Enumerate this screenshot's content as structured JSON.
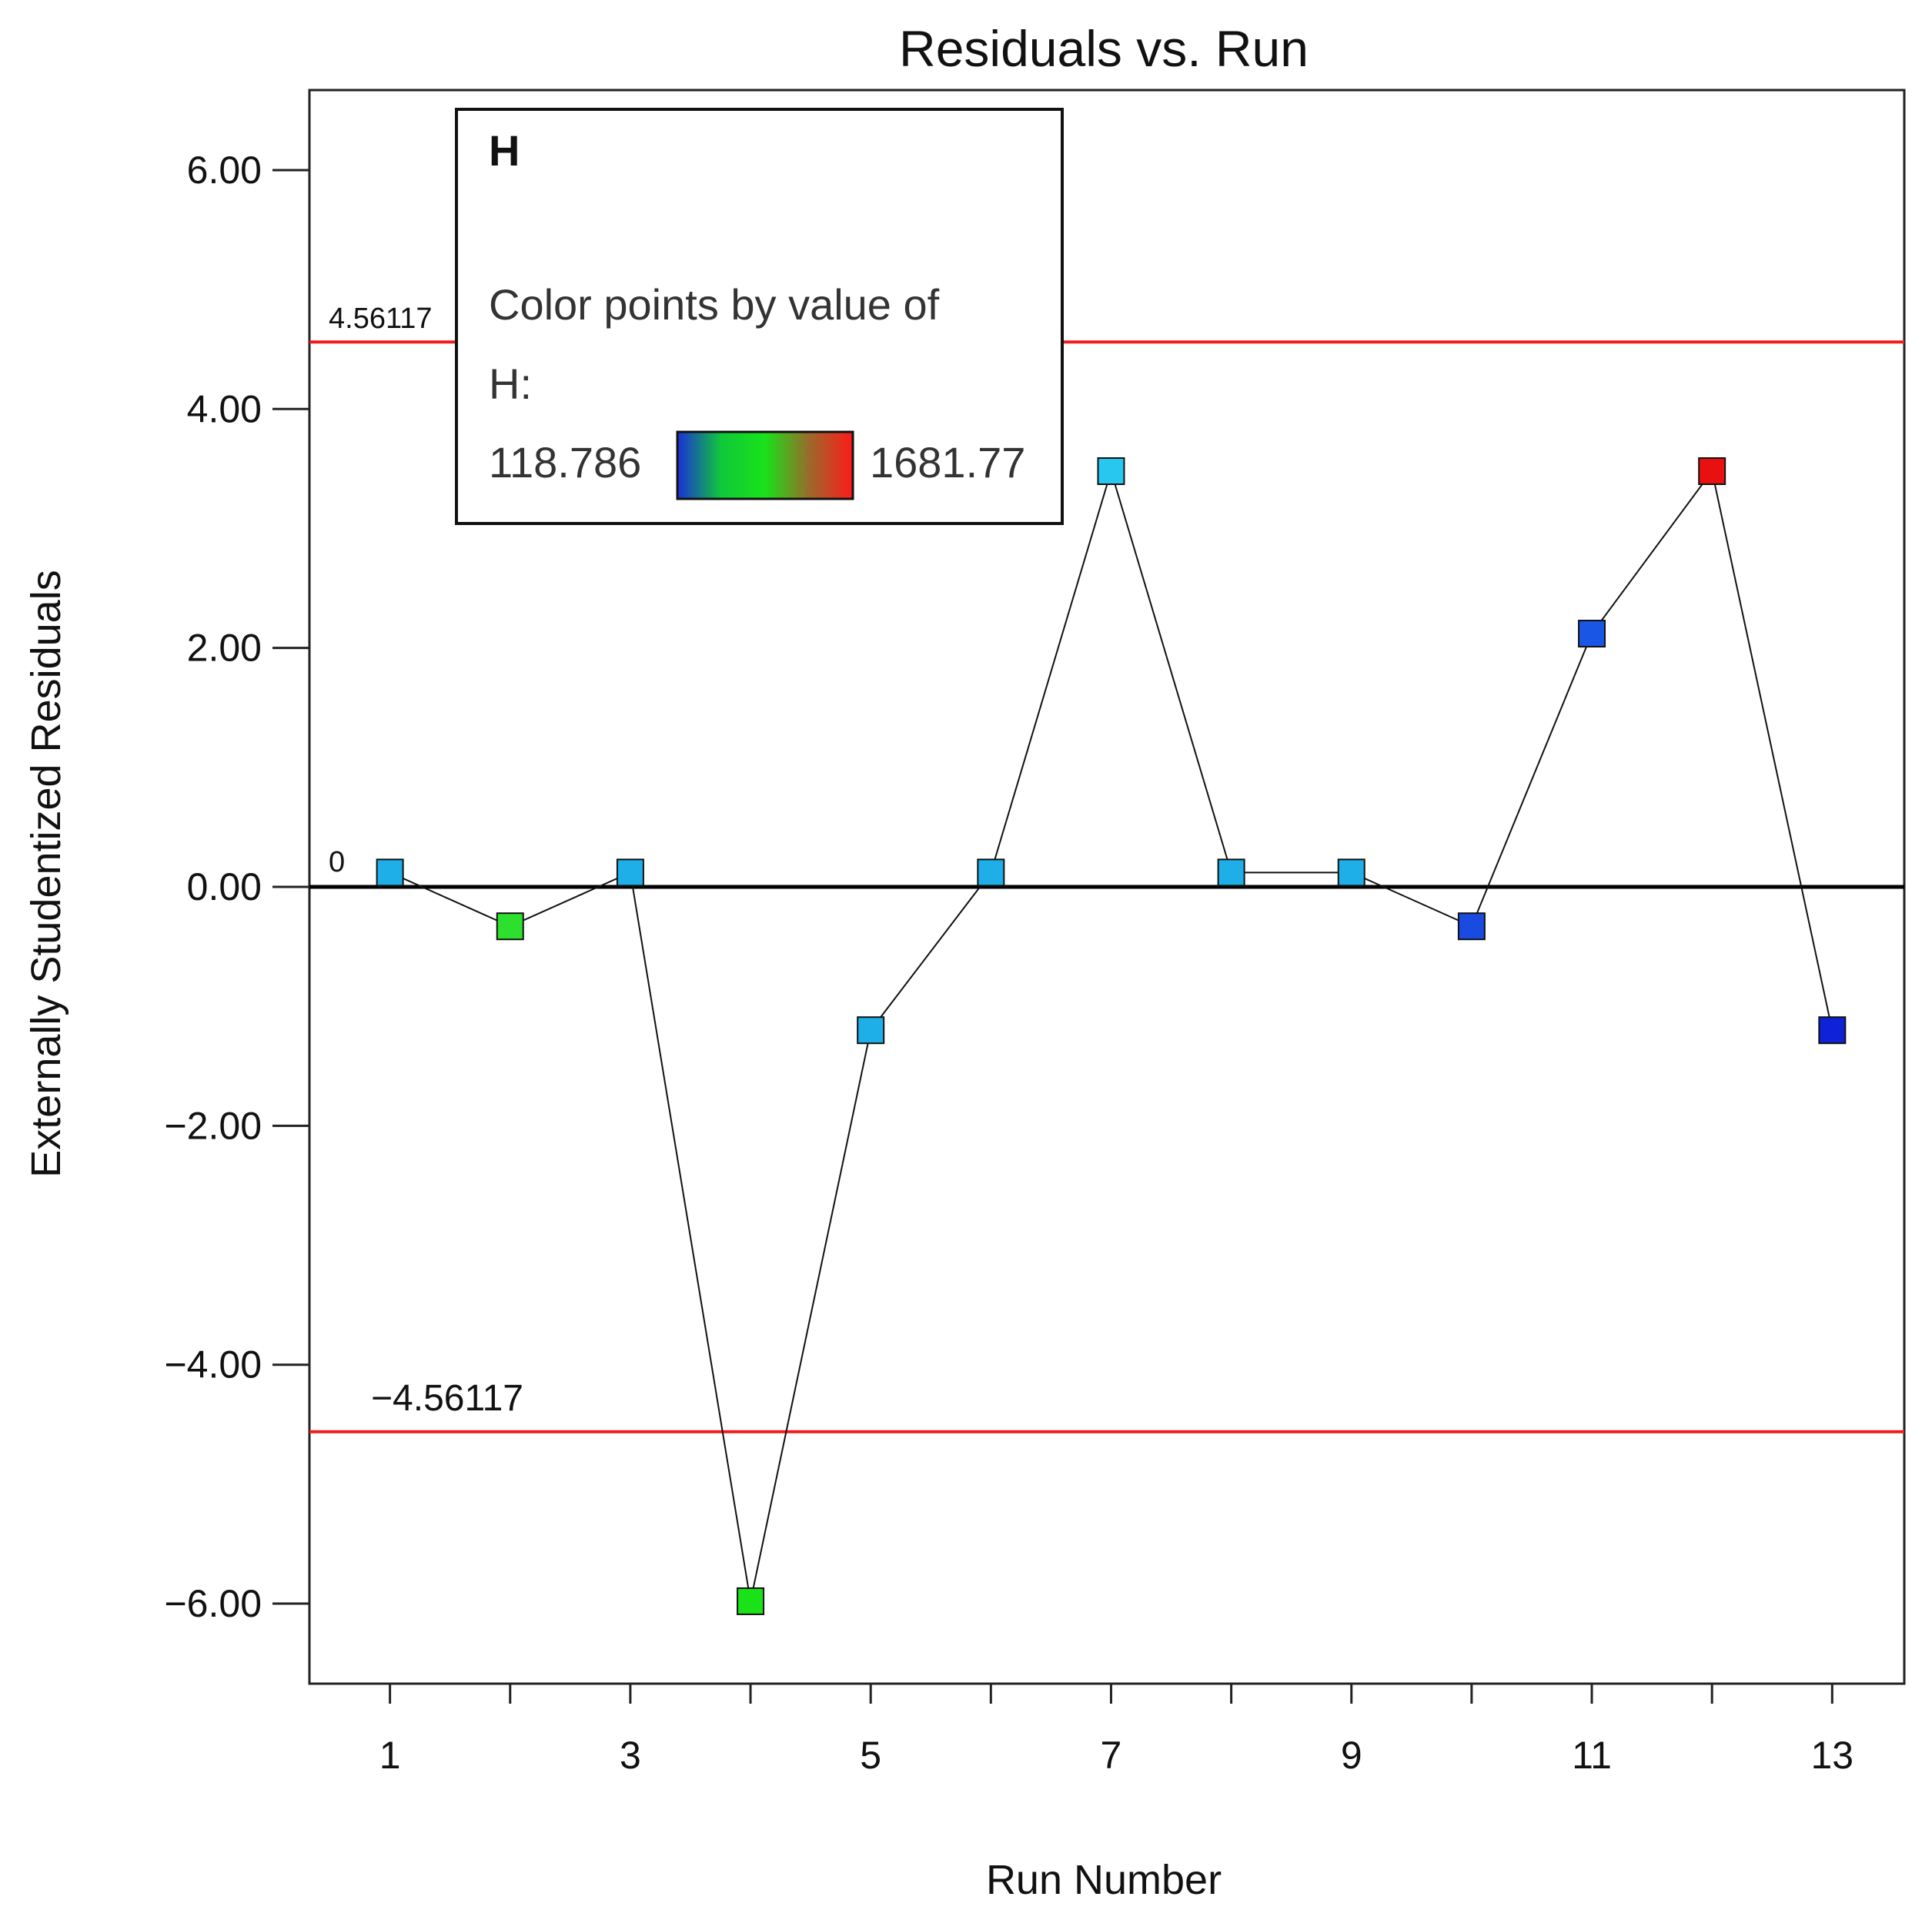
{
  "chart_data": {
    "type": "scatter",
    "title": "Residuals vs. Run",
    "xlabel": "Run Number",
    "ylabel": "Externally Studentized Residuals",
    "xlim": [
      0.33,
      13.6
    ],
    "ylim": [
      -6.67,
      6.67
    ],
    "x_ticks": [
      1,
      3,
      5,
      7,
      9,
      11,
      13
    ],
    "y_ticks": [
      6,
      4,
      2,
      0,
      -2,
      -4,
      -6
    ],
    "y_tick_labels": [
      "6.00",
      "4.00",
      "2.00",
      "0.00",
      "−2.00",
      "−4.00",
      "−6.00"
    ],
    "grid": false,
    "connected": true,
    "marker": "square",
    "reference_lines": [
      {
        "y": 4.56117,
        "label": "4.56117",
        "color": "#ee1c1c"
      },
      {
        "y": 0,
        "label": "0",
        "color": "#000000"
      },
      {
        "y": -4.56117,
        "label": "−4.56117",
        "color": "#ee1c1c"
      }
    ],
    "points": [
      {
        "x": 1,
        "y": 0.12,
        "color": "#1eaee8"
      },
      {
        "x": 2,
        "y": -0.33,
        "color": "#2ee02e"
      },
      {
        "x": 3,
        "y": 0.12,
        "color": "#1eaee8"
      },
      {
        "x": 4,
        "y": -5.98,
        "color": "#19e219"
      },
      {
        "x": 5,
        "y": -1.2,
        "color": "#1eaee8"
      },
      {
        "x": 6,
        "y": 0.12,
        "color": "#1eaee8"
      },
      {
        "x": 7,
        "y": 3.48,
        "color": "#28c7ef"
      },
      {
        "x": 8,
        "y": 0.12,
        "color": "#1eaee8"
      },
      {
        "x": 9,
        "y": 0.12,
        "color": "#1eaee8"
      },
      {
        "x": 10,
        "y": -0.33,
        "color": "#1a4be0"
      },
      {
        "x": 11,
        "y": 2.12,
        "color": "#1a56e6"
      },
      {
        "x": 12,
        "y": 3.48,
        "color": "#e81010"
      },
      {
        "x": 13,
        "y": -1.2,
        "color": "#0f22d8"
      }
    ],
    "legend": {
      "position": "top-left",
      "title": "H",
      "text_line1": "Color points by value  of",
      "text_line2": "H:",
      "min_label": "118.786",
      "max_label": "1681.77",
      "gradient": [
        "#1a2fd8",
        "#10c83a",
        "#19e219",
        "#9a6a2a",
        "#ff1a1a"
      ]
    }
  }
}
